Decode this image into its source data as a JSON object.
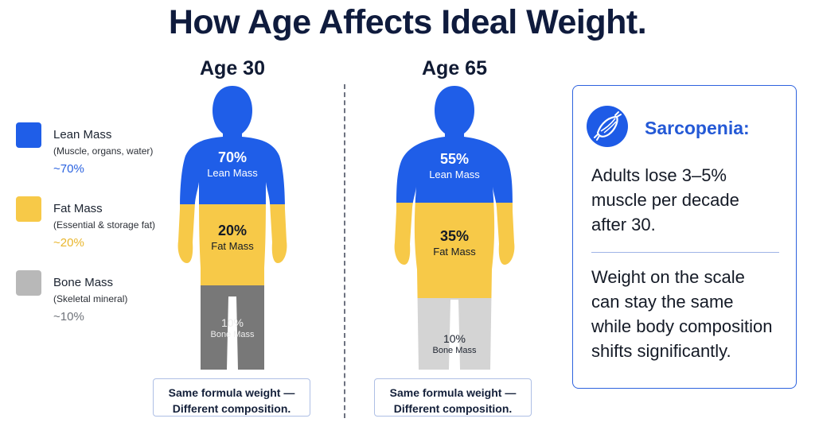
{
  "title": "How Age Affects Ideal Weight.",
  "legend": [
    {
      "name": "Lean Mass",
      "desc": "(Muscle, organs, water)",
      "pct": "~70%",
      "color": "#1f5ee8",
      "pct_color": "#2a62e0"
    },
    {
      "name": "Fat Mass",
      "desc": "(Essential & storage fat)",
      "pct": "~20%",
      "color": "#f7c948",
      "pct_color": "#e9b62c"
    },
    {
      "name": "Bone Mass",
      "desc": "(Skeletal mineral)",
      "pct": "~10%",
      "color": "#b8b8b8",
      "pct_color": "#6f737a"
    }
  ],
  "figures": [
    {
      "age": "Age 30",
      "lean": {
        "pct": "70%",
        "name": "Lean Mass"
      },
      "fat": {
        "pct": "20%",
        "name": "Fat Mass"
      },
      "bone": {
        "pct": "10%",
        "name": "Bone Mass"
      },
      "note": [
        "Same formula weight —",
        "Different composition."
      ]
    },
    {
      "age": "Age 65",
      "lean": {
        "pct": "55%",
        "name": "Lean Mass"
      },
      "fat": {
        "pct": "35%",
        "name": "Fat Mass"
      },
      "bone": {
        "pct": "10%",
        "name": "Bone Mass"
      },
      "note": [
        "Same formula weight —",
        "Different composition."
      ]
    }
  ],
  "panel": {
    "icon": "muscle-icon",
    "title": "Sarcopenia:",
    "text1": [
      "Adults lose 3–5%",
      "muscle per decade",
      "after 30."
    ],
    "text2": [
      "Weight on the scale",
      "can stay the same",
      "while body composition",
      "shifts significantly."
    ]
  },
  "colors": {
    "lean": "#1f5ee8",
    "fat": "#f7c948",
    "bone_dark": "#787878",
    "bone_light": "#d4d4d4",
    "accent": "#2459d6"
  }
}
